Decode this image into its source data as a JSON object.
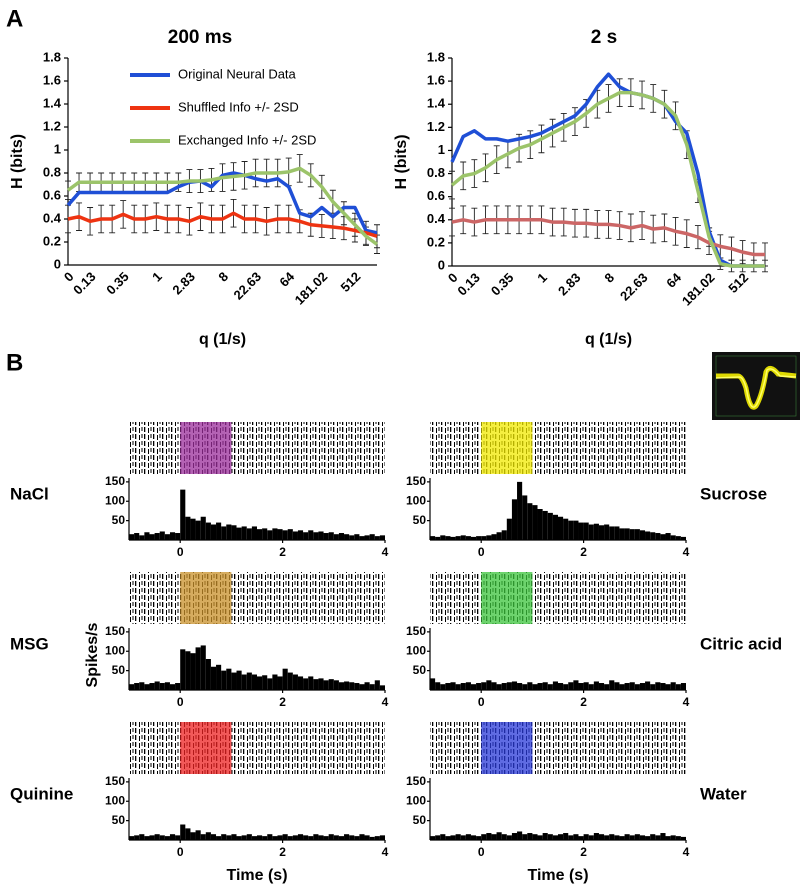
{
  "panel_labels": [
    "A",
    "B"
  ],
  "chart_data": [
    {
      "type": "line",
      "title": "200 ms",
      "xlabel": "q (1/s)",
      "ylabel": "H (bits)",
      "legend": "upper left",
      "categories": [
        "0",
        null,
        "0.13",
        null,
        null,
        "0.35",
        null,
        null,
        "1",
        null,
        null,
        "2.83",
        null,
        null,
        "8",
        null,
        null,
        "22.63",
        null,
        null,
        "64",
        null,
        null,
        "181.02",
        null,
        null,
        "512",
        null,
        null
      ],
      "ylim": [
        0,
        1.8
      ],
      "yticks": [
        0,
        0.2,
        0.4,
        0.6,
        0.8,
        1,
        1.2,
        1.4,
        1.6,
        1.8
      ],
      "series": [
        {
          "name": "Original Neural Data",
          "color": "#1f4fd6",
          "values": [
            0.52,
            0.63,
            0.63,
            0.63,
            0.63,
            0.63,
            0.63,
            0.63,
            0.63,
            0.63,
            0.68,
            0.72,
            0.73,
            0.68,
            0.78,
            0.8,
            0.78,
            0.75,
            0.73,
            0.75,
            0.68,
            0.45,
            0.42,
            0.5,
            0.42,
            0.5,
            0.5,
            0.3,
            0.28
          ]
        },
        {
          "name": "Shuffled Info +/- 2SD",
          "color": "#ee3311",
          "values": [
            0.4,
            0.42,
            0.38,
            0.4,
            0.4,
            0.44,
            0.4,
            0.4,
            0.42,
            0.4,
            0.4,
            0.38,
            0.42,
            0.4,
            0.4,
            0.45,
            0.4,
            0.4,
            0.38,
            0.4,
            0.4,
            0.38,
            0.35,
            0.34,
            0.33,
            0.32,
            0.3,
            0.28,
            0.25
          ],
          "errors": [
            0.12,
            0.12,
            0.12,
            0.12,
            0.12,
            0.12,
            0.12,
            0.12,
            0.12,
            0.12,
            0.12,
            0.12,
            0.12,
            0.12,
            0.12,
            0.12,
            0.12,
            0.12,
            0.12,
            0.12,
            0.12,
            0.1,
            0.1,
            0.1,
            0.1,
            0.1,
            0.1,
            0.1,
            0.1
          ]
        },
        {
          "name": "Exchanged Info +/- 2SD",
          "color": "#9cc46a",
          "values": [
            0.65,
            0.72,
            0.72,
            0.72,
            0.72,
            0.72,
            0.72,
            0.72,
            0.72,
            0.72,
            0.72,
            0.73,
            0.73,
            0.74,
            0.76,
            0.77,
            0.78,
            0.8,
            0.8,
            0.8,
            0.81,
            0.84,
            0.78,
            0.68,
            0.55,
            0.45,
            0.35,
            0.25,
            0.18
          ],
          "errors": [
            0.08,
            0.08,
            0.08,
            0.08,
            0.08,
            0.08,
            0.08,
            0.08,
            0.08,
            0.08,
            0.08,
            0.1,
            0.1,
            0.1,
            0.12,
            0.12,
            0.12,
            0.12,
            0.12,
            0.12,
            0.12,
            0.12,
            0.1,
            0.1,
            0.1,
            0.1,
            0.1,
            0.08,
            0.08
          ]
        }
      ]
    },
    {
      "type": "line",
      "title": "2 s",
      "xlabel": "q (1/s)",
      "ylabel": "H (bits)",
      "categories": [
        "0",
        null,
        "0.13",
        null,
        null,
        "0.35",
        null,
        null,
        "1",
        null,
        null,
        "2.83",
        null,
        null,
        "8",
        null,
        null,
        "22.63",
        null,
        null,
        "64",
        null,
        null,
        "181.02",
        null,
        null,
        "512",
        null,
        null
      ],
      "ylim": [
        0,
        1.8
      ],
      "yticks": [
        0,
        0.2,
        0.4,
        0.6,
        0.8,
        1,
        1.2,
        1.4,
        1.6,
        1.8
      ],
      "series": [
        {
          "color": "#1f4fd6",
          "values": [
            0.9,
            1.12,
            1.17,
            1.1,
            1.1,
            1.08,
            1.1,
            1.12,
            1.15,
            1.2,
            1.25,
            1.3,
            1.4,
            1.55,
            1.66,
            1.55,
            1.5,
            1.48,
            1.45,
            1.4,
            1.25,
            1.15,
            0.8,
            0.3,
            0.05,
            0,
            0,
            0,
            0
          ]
        },
        {
          "color": "#cc6666",
          "values": [
            0.38,
            0.4,
            0.38,
            0.4,
            0.4,
            0.4,
            0.4,
            0.4,
            0.4,
            0.38,
            0.38,
            0.37,
            0.37,
            0.36,
            0.36,
            0.35,
            0.33,
            0.35,
            0.32,
            0.33,
            0.3,
            0.28,
            0.25,
            0.2,
            0.17,
            0.15,
            0.12,
            0.1,
            0.1
          ],
          "errors": [
            0.12,
            0.12,
            0.12,
            0.12,
            0.12,
            0.12,
            0.12,
            0.12,
            0.12,
            0.12,
            0.12,
            0.12,
            0.12,
            0.12,
            0.12,
            0.12,
            0.12,
            0.12,
            0.12,
            0.12,
            0.12,
            0.12,
            0.1,
            0.1,
            0.1,
            0.1,
            0.1,
            0.1,
            0.1
          ]
        },
        {
          "color": "#9cc46a",
          "values": [
            0.7,
            0.78,
            0.8,
            0.85,
            0.92,
            0.97,
            1.02,
            1.05,
            1.1,
            1.15,
            1.2,
            1.25,
            1.32,
            1.4,
            1.45,
            1.5,
            1.5,
            1.48,
            1.45,
            1.4,
            1.3,
            1.05,
            0.65,
            0.25,
            0.02,
            0,
            0,
            0,
            0
          ],
          "errors": [
            0.12,
            0.12,
            0.12,
            0.12,
            0.12,
            0.12,
            0.12,
            0.12,
            0.12,
            0.12,
            0.12,
            0.12,
            0.12,
            0.12,
            0.12,
            0.12,
            0.12,
            0.12,
            0.12,
            0.12,
            0.12,
            0.12,
            0.1,
            0.08,
            0.05,
            0.05,
            0.05,
            0.05,
            0.05
          ]
        }
      ]
    },
    {
      "type": "histogram",
      "title": "NaCl",
      "color": "#000000",
      "marker_color": "#9b2d9b",
      "bins": [
        -1,
        -0.9,
        -0.8,
        -0.7,
        -0.6,
        -0.5,
        -0.4,
        -0.3,
        -0.2,
        -0.1,
        0,
        0.1,
        0.2,
        0.3,
        0.4,
        0.5,
        0.6,
        0.7,
        0.8,
        0.9,
        1,
        1.1,
        1.2,
        1.3,
        1.4,
        1.5,
        1.6,
        1.7,
        1.8,
        1.9,
        2,
        2.1,
        2.2,
        2.3,
        2.4,
        2.5,
        2.6,
        2.7,
        2.8,
        2.9,
        3,
        3.1,
        3.2,
        3.3,
        3.4,
        3.5,
        3.6,
        3.7,
        3.8,
        3.9,
        4
      ],
      "values": [
        15,
        18,
        12,
        20,
        15,
        18,
        22,
        15,
        20,
        18,
        130,
        60,
        55,
        50,
        60,
        45,
        40,
        45,
        35,
        40,
        38,
        32,
        35,
        30,
        35,
        28,
        30,
        25,
        30,
        28,
        25,
        28,
        22,
        25,
        20,
        25,
        20,
        22,
        18,
        20,
        15,
        18,
        15,
        12,
        15,
        10,
        12,
        15,
        10,
        12
      ],
      "xlim": [
        -1,
        4
      ],
      "xticks": [
        0,
        2,
        4
      ],
      "ylim": [
        0,
        160
      ],
      "yticks": [
        50,
        100,
        150
      ]
    },
    {
      "type": "histogram",
      "title": "Sucrose",
      "color": "#000000",
      "marker_color": "#f2ea00",
      "bins": [
        -1,
        -0.9,
        -0.8,
        -0.7,
        -0.6,
        -0.5,
        -0.4,
        -0.3,
        -0.2,
        -0.1,
        0,
        0.1,
        0.2,
        0.3,
        0.4,
        0.5,
        0.6,
        0.7,
        0.8,
        0.9,
        1,
        1.1,
        1.2,
        1.3,
        1.4,
        1.5,
        1.6,
        1.7,
        1.8,
        1.9,
        2,
        2.1,
        2.2,
        2.3,
        2.4,
        2.5,
        2.6,
        2.7,
        2.8,
        2.9,
        3,
        3.1,
        3.2,
        3.3,
        3.4,
        3.5,
        3.6,
        3.7,
        3.8,
        3.9,
        4
      ],
      "values": [
        10,
        8,
        12,
        10,
        8,
        10,
        12,
        10,
        8,
        10,
        10,
        12,
        15,
        20,
        25,
        55,
        105,
        150,
        115,
        95,
        90,
        80,
        75,
        70,
        65,
        60,
        55,
        50,
        50,
        45,
        45,
        40,
        42,
        38,
        40,
        35,
        35,
        30,
        30,
        28,
        28,
        25,
        22,
        20,
        18,
        15,
        18,
        12,
        10,
        8
      ],
      "xlim": [
        -1,
        4
      ],
      "xticks": [
        0,
        2,
        4
      ],
      "ylim": [
        0,
        160
      ],
      "yticks": [
        50,
        100,
        150
      ]
    },
    {
      "type": "histogram",
      "title": "MSG",
      "ylabel": "Spikes/s",
      "color": "#000000",
      "marker_color": "#c8902a",
      "bins": [
        -1,
        -0.9,
        -0.8,
        -0.7,
        -0.6,
        -0.5,
        -0.4,
        -0.3,
        -0.2,
        -0.1,
        0,
        0.1,
        0.2,
        0.3,
        0.4,
        0.5,
        0.6,
        0.7,
        0.8,
        0.9,
        1,
        1.1,
        1.2,
        1.3,
        1.4,
        1.5,
        1.6,
        1.7,
        1.8,
        1.9,
        2,
        2.1,
        2.2,
        2.3,
        2.4,
        2.5,
        2.6,
        2.7,
        2.8,
        2.9,
        3,
        3.1,
        3.2,
        3.3,
        3.4,
        3.5,
        3.6,
        3.7,
        3.8,
        3.9,
        4
      ],
      "values": [
        15,
        18,
        20,
        15,
        18,
        22,
        18,
        20,
        15,
        18,
        105,
        100,
        95,
        110,
        115,
        80,
        60,
        65,
        50,
        55,
        45,
        50,
        40,
        45,
        40,
        35,
        38,
        30,
        40,
        35,
        55,
        45,
        40,
        35,
        30,
        35,
        28,
        30,
        25,
        28,
        25,
        20,
        22,
        20,
        18,
        15,
        20,
        15,
        25,
        12
      ],
      "xlim": [
        -1,
        4
      ],
      "xticks": [
        0,
        2,
        4
      ],
      "ylim": [
        0,
        160
      ],
      "yticks": [
        50,
        100,
        150
      ]
    },
    {
      "type": "histogram",
      "title": "Citric acid",
      "color": "#000000",
      "marker_color": "#3cc43c",
      "bins": [
        -1,
        -0.9,
        -0.8,
        -0.7,
        -0.6,
        -0.5,
        -0.4,
        -0.3,
        -0.2,
        -0.1,
        0,
        0.1,
        0.2,
        0.3,
        0.4,
        0.5,
        0.6,
        0.7,
        0.8,
        0.9,
        1,
        1.1,
        1.2,
        1.3,
        1.4,
        1.5,
        1.6,
        1.7,
        1.8,
        1.9,
        2,
        2.1,
        2.2,
        2.3,
        2.4,
        2.5,
        2.6,
        2.7,
        2.8,
        2.9,
        3,
        3.1,
        3.2,
        3.3,
        3.4,
        3.5,
        3.6,
        3.7,
        3.8,
        3.9,
        4
      ],
      "values": [
        30,
        20,
        15,
        18,
        20,
        15,
        18,
        20,
        15,
        18,
        20,
        25,
        20,
        15,
        18,
        20,
        22,
        18,
        15,
        20,
        15,
        18,
        20,
        15,
        22,
        18,
        15,
        20,
        25,
        18,
        20,
        15,
        22,
        18,
        15,
        25,
        20,
        15,
        18,
        20,
        15,
        18,
        22,
        15,
        20,
        18,
        15,
        20,
        15,
        18
      ],
      "xlim": [
        -1,
        4
      ],
      "xticks": [
        0,
        2,
        4
      ],
      "ylim": [
        0,
        160
      ],
      "yticks": [
        50,
        100,
        150
      ]
    },
    {
      "type": "histogram",
      "title": "Quinine",
      "xlabel": "Time (s)",
      "color": "#000000",
      "marker_color": "#ee2222",
      "bins": [
        -1,
        -0.9,
        -0.8,
        -0.7,
        -0.6,
        -0.5,
        -0.4,
        -0.3,
        -0.2,
        -0.1,
        0,
        0.1,
        0.2,
        0.3,
        0.4,
        0.5,
        0.6,
        0.7,
        0.8,
        0.9,
        1,
        1.1,
        1.2,
        1.3,
        1.4,
        1.5,
        1.6,
        1.7,
        1.8,
        1.9,
        2,
        2.1,
        2.2,
        2.3,
        2.4,
        2.5,
        2.6,
        2.7,
        2.8,
        2.9,
        3,
        3.1,
        3.2,
        3.3,
        3.4,
        3.5,
        3.6,
        3.7,
        3.8,
        3.9,
        4
      ],
      "values": [
        10,
        12,
        15,
        10,
        12,
        15,
        12,
        10,
        15,
        12,
        40,
        30,
        20,
        25,
        15,
        20,
        15,
        10,
        15,
        12,
        15,
        10,
        12,
        15,
        10,
        12,
        10,
        15,
        10,
        12,
        15,
        10,
        12,
        15,
        12,
        10,
        15,
        12,
        10,
        15,
        12,
        10,
        15,
        12,
        10,
        15,
        12,
        8,
        10,
        12
      ],
      "xlim": [
        -1,
        4
      ],
      "xticks": [
        0,
        2,
        4
      ],
      "ylim": [
        0,
        160
      ],
      "yticks": [
        50,
        100,
        150
      ]
    },
    {
      "type": "histogram",
      "title": "Water",
      "xlabel": "Time (s)",
      "color": "#000000",
      "marker_color": "#2a3ad8",
      "bins": [
        -1,
        -0.9,
        -0.8,
        -0.7,
        -0.6,
        -0.5,
        -0.4,
        -0.3,
        -0.2,
        -0.1,
        0,
        0.1,
        0.2,
        0.3,
        0.4,
        0.5,
        0.6,
        0.7,
        0.8,
        0.9,
        1,
        1.1,
        1.2,
        1.3,
        1.4,
        1.5,
        1.6,
        1.7,
        1.8,
        1.9,
        2,
        2.1,
        2.2,
        2.3,
        2.4,
        2.5,
        2.6,
        2.7,
        2.8,
        2.9,
        3,
        3.1,
        3.2,
        3.3,
        3.4,
        3.5,
        3.6,
        3.7,
        3.8,
        3.9,
        4
      ],
      "values": [
        10,
        12,
        15,
        10,
        12,
        15,
        12,
        15,
        12,
        10,
        15,
        18,
        15,
        20,
        15,
        12,
        18,
        22,
        15,
        18,
        15,
        12,
        18,
        15,
        12,
        15,
        18,
        12,
        15,
        10,
        15,
        12,
        18,
        15,
        12,
        15,
        12,
        10,
        15,
        12,
        15,
        12,
        10,
        15,
        12,
        18,
        10,
        12,
        10,
        8
      ],
      "xlim": [
        -1,
        4
      ],
      "xticks": [
        0,
        2,
        4
      ],
      "ylim": [
        0,
        160
      ],
      "yticks": [
        50,
        100,
        150
      ]
    }
  ]
}
